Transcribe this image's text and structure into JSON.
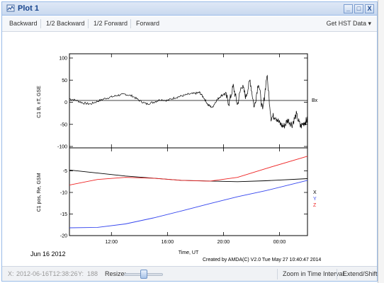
{
  "window": {
    "title": "Plot 1",
    "controls": {
      "minimize": "_",
      "maximize": "□",
      "close": "X"
    }
  },
  "toolbar": {
    "backward": "Backward",
    "half_backward": "1/2 Backward",
    "half_forward": "1/2 Forward",
    "forward": "Forward",
    "get_hst_data": "Get HST Data ▾"
  },
  "plot": {
    "date_label": "Jun 16 2012",
    "credit": "Created by AMDA(C) V2.0 Tue May 27 10:40:47 2014",
    "xlabel": "Time, UT",
    "xticks": [
      "12:00",
      "16:00",
      "20:00",
      "00:00"
    ]
  },
  "status": {
    "x_label": "X:",
    "x_value": "2012-06-16T12:38:26",
    "y_label": "Y:",
    "y_value": "188",
    "resize_label": "Resize:",
    "resize_level": 0.45,
    "zoom_button": "Zoom in Time Interval",
    "extend_button": "Extend/Shift"
  },
  "chart_data": [
    {
      "type": "line",
      "ylabel": "C1 B, nT, GSE",
      "ylim": [
        -100,
        100
      ],
      "yticks": [
        "100",
        "50",
        "0",
        "-50",
        "-100"
      ],
      "xlim": [
        9,
        26
      ],
      "series": [
        {
          "name": "Bx",
          "color": "#000000",
          "x": [
            9,
            9.5,
            10,
            10.5,
            11,
            11.5,
            12,
            12.5,
            13,
            13.5,
            14,
            14.5,
            15,
            15.5,
            16,
            16.5,
            17,
            17.5,
            18,
            18.3,
            18.6,
            18.9,
            19.2,
            19.5,
            19.8,
            20.1,
            20.4,
            20.7,
            21,
            21.3,
            21.6,
            21.9,
            22.2,
            22.5,
            22.8,
            23.1,
            23.4,
            23.7,
            24,
            24.3,
            24.6,
            24.9,
            25.2,
            25.5,
            25.8,
            26
          ],
          "values": [
            8,
            4,
            -2,
            -4,
            2,
            8,
            12,
            16,
            18,
            14,
            4,
            -4,
            0,
            6,
            4,
            10,
            14,
            18,
            20,
            22,
            10,
            -6,
            -12,
            4,
            14,
            20,
            -2,
            36,
            -6,
            40,
            12,
            50,
            -12,
            46,
            -22,
            62,
            -35,
            -30,
            -48,
            -55,
            -40,
            -50,
            -28,
            -55,
            -45,
            -40
          ]
        }
      ]
    },
    {
      "type": "line",
      "ylabel": "C1 pos, Re, GSM",
      "ylim": [
        -20,
        0
      ],
      "yticks": [
        "-5",
        "-10",
        "-15",
        "-20"
      ],
      "xlim": [
        9,
        26
      ],
      "legend": "right",
      "series": [
        {
          "name": "X",
          "color": "#000000",
          "x": [
            9,
            13,
            17,
            21,
            23,
            26
          ],
          "values": [
            -4.8,
            -6.2,
            -7.2,
            -7.5,
            -7.3,
            -6.8
          ]
        },
        {
          "name": "Y",
          "color": "#3344ee",
          "x": [
            9,
            11,
            13,
            15,
            17,
            19,
            21,
            23,
            26
          ],
          "values": [
            -18.2,
            -18.1,
            -17.3,
            -15.9,
            -14.3,
            -12.6,
            -11.0,
            -9.6,
            -7.2
          ]
        },
        {
          "name": "Z",
          "color": "#ee2222",
          "x": [
            9,
            11,
            13,
            15,
            17,
            19,
            21,
            23,
            26
          ],
          "values": [
            -8.3,
            -7.0,
            -6.5,
            -6.7,
            -7.2,
            -7.4,
            -6.5,
            -4.5,
            -1.6
          ]
        }
      ]
    }
  ]
}
